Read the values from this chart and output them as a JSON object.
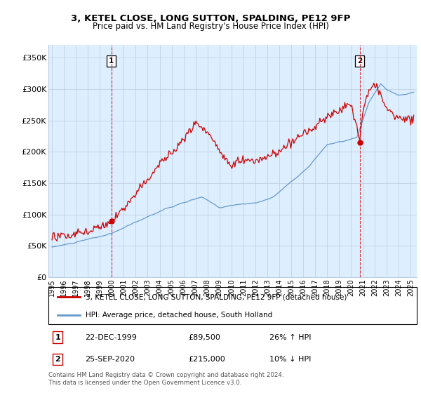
{
  "title": "3, KETEL CLOSE, LONG SUTTON, SPALDING, PE12 9FP",
  "subtitle": "Price paid vs. HM Land Registry's House Price Index (HPI)",
  "ylabel_ticks": [
    "£0",
    "£50K",
    "£100K",
    "£150K",
    "£200K",
    "£250K",
    "£300K",
    "£350K"
  ],
  "ytick_values": [
    0,
    50000,
    100000,
    150000,
    200000,
    250000,
    300000,
    350000
  ],
  "ylim": [
    0,
    370000
  ],
  "xlim_start": 1994.7,
  "xlim_end": 2025.5,
  "red_color": "#cc0000",
  "blue_color": "#6699cc",
  "plot_bg_color": "#ddeeff",
  "marker1_x": 1999.97,
  "marker1_y": 89500,
  "marker2_x": 2020.73,
  "marker2_y": 215000,
  "legend_entries": [
    "3, KETEL CLOSE, LONG SUTTON, SPALDING, PE12 9FP (detached house)",
    "HPI: Average price, detached house, South Holland"
  ],
  "annotation_rows": [
    {
      "num": "1",
      "date": "22-DEC-1999",
      "price": "£89,500",
      "hpi": "26% ↑ HPI"
    },
    {
      "num": "2",
      "date": "25-SEP-2020",
      "price": "£215,000",
      "hpi": "10% ↓ HPI"
    }
  ],
  "footnote": "Contains HM Land Registry data © Crown copyright and database right 2024.\nThis data is licensed under the Open Government Licence v3.0.",
  "background_color": "#ffffff",
  "grid_color": "#bbccdd"
}
